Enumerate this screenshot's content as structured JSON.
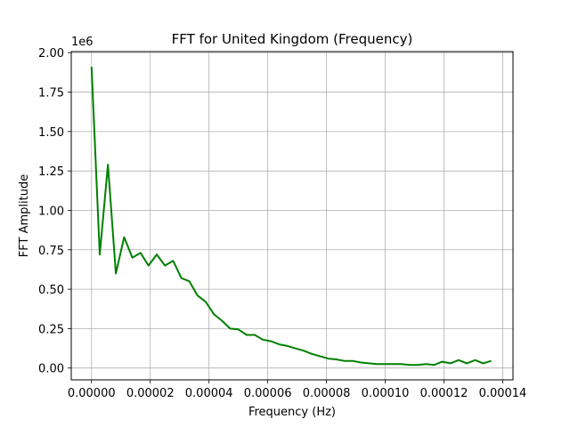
{
  "chart_data": {
    "type": "line",
    "title": "FFT for United Kingdom (Frequency)",
    "xlabel": "Frequency (Hz)",
    "ylabel": "FFT Amplitude",
    "y_offset_label": "1e6",
    "xlim": [
      -6.9e-06,
      0.0001435
    ],
    "ylim": [
      -0.075,
      2.007
    ],
    "x_ticks": [
      0,
      2e-05,
      4e-05,
      6e-05,
      8e-05,
      0.0001,
      0.00012,
      0.00014
    ],
    "x_tick_labels": [
      "0.00000",
      "0.00002",
      "0.00004",
      "0.00006",
      "0.00008",
      "0.00010",
      "0.00012",
      "0.00014"
    ],
    "y_ticks": [
      0,
      0.25,
      0.5,
      0.75,
      1.0,
      1.25,
      1.5,
      1.75,
      2.0
    ],
    "y_tick_labels": [
      "0.00",
      "0.25",
      "0.50",
      "0.75",
      "1.00",
      "1.25",
      "1.50",
      "1.75",
      "2.00"
    ],
    "grid": true,
    "series": [
      {
        "color": "#008000",
        "x": [
          0,
          2.8e-06,
          5.6e-06,
          8.3e-06,
          1.11e-05,
          1.39e-05,
          1.67e-05,
          1.94e-05,
          2.22e-05,
          2.5e-05,
          2.78e-05,
          3.06e-05,
          3.33e-05,
          3.61e-05,
          3.89e-05,
          4.17e-05,
          4.44e-05,
          4.72e-05,
          5e-05,
          5.28e-05,
          5.56e-05,
          5.83e-05,
          6.11e-05,
          6.39e-05,
          6.67e-05,
          6.94e-05,
          7.22e-05,
          7.5e-05,
          7.78e-05,
          8.06e-05,
          8.33e-05,
          8.61e-05,
          8.89e-05,
          9.17e-05,
          9.44e-05,
          9.72e-05,
          0.0001,
          0.0001028,
          0.0001056,
          0.0001083,
          0.0001111,
          0.0001139,
          0.0001167,
          0.0001194,
          0.0001222,
          0.000125,
          0.0001278,
          0.0001306,
          0.0001333,
          0.0001361
        ],
        "values": [
          1.91,
          0.72,
          1.29,
          0.6,
          0.83,
          0.7,
          0.73,
          0.65,
          0.72,
          0.65,
          0.68,
          0.57,
          0.55,
          0.46,
          0.42,
          0.34,
          0.3,
          0.25,
          0.245,
          0.21,
          0.21,
          0.18,
          0.17,
          0.15,
          0.14,
          0.125,
          0.11,
          0.09,
          0.075,
          0.06,
          0.055,
          0.045,
          0.045,
          0.035,
          0.03,
          0.025,
          0.025,
          0.025,
          0.025,
          0.02,
          0.02,
          0.025,
          0.02,
          0.04,
          0.03,
          0.05,
          0.03,
          0.05,
          0.03,
          0.045
        ]
      }
    ]
  }
}
